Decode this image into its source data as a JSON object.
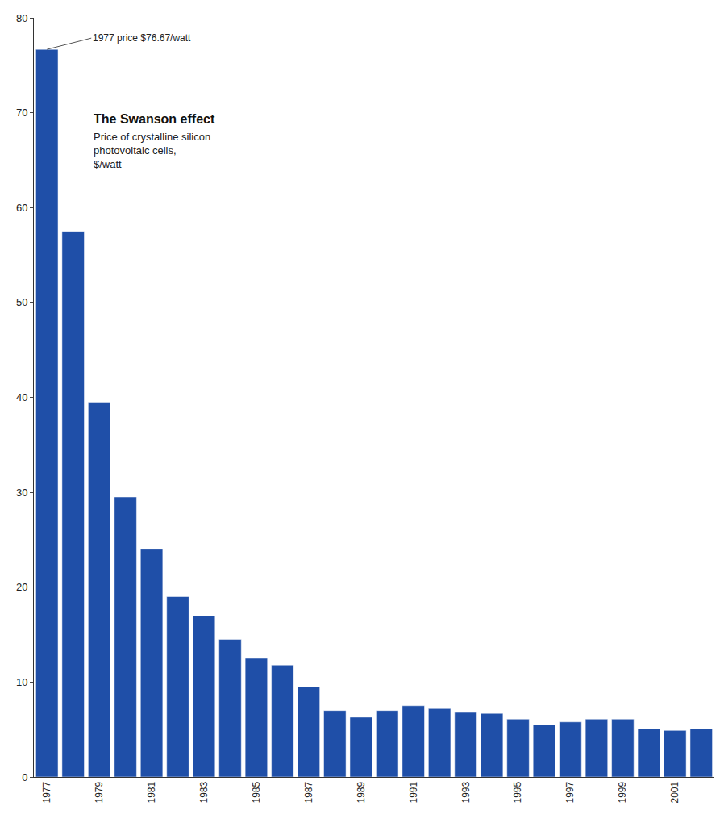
{
  "chart_data": {
    "type": "bar",
    "title": "The Swanson effect",
    "subtitle": "Price of crystalline silicon photovoltaic cells, $/watt",
    "annotations": [
      "1977 price $76.67/watt"
    ],
    "categories": [
      "1977",
      null,
      "1979",
      null,
      "1981",
      null,
      "1983",
      null,
      "1985",
      null,
      "1987",
      null,
      "1989",
      null,
      "1991",
      null,
      "1993",
      null,
      "1995",
      null,
      "1997",
      null,
      "1999",
      null,
      "2001",
      null
    ],
    "values": [
      76.67,
      57.5,
      39.5,
      29.5,
      24,
      19,
      17,
      14.5,
      12.5,
      11.8,
      9.5,
      7,
      6.3,
      7,
      7.5,
      7.2,
      6.8,
      6.7,
      6.1,
      5.5,
      5.8,
      6.1,
      6.1,
      5.1,
      4.9,
      5.1
    ],
    "color": "#1f4fa8",
    "ylim": [
      0,
      80
    ],
    "yticks": [
      0,
      10,
      20,
      30,
      40,
      50,
      60,
      70,
      80
    ],
    "grid": false
  }
}
